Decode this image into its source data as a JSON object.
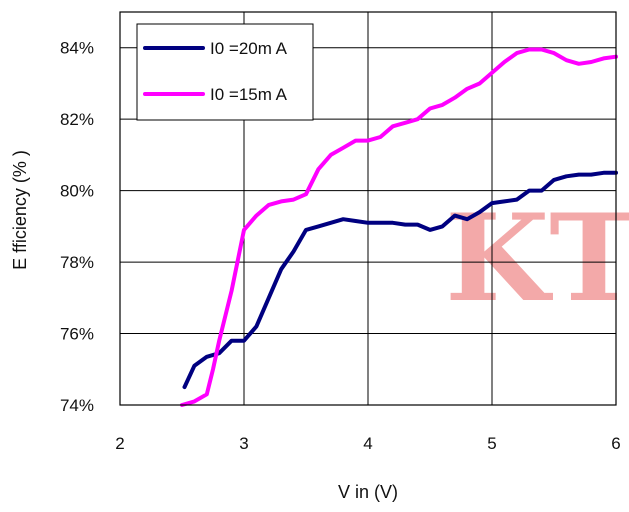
{
  "chart_data": {
    "type": "line",
    "xlabel": "V in (V)",
    "ylabel": "E fficiency (% )",
    "xlim": [
      2,
      6
    ],
    "ylim": [
      74,
      85
    ],
    "x_ticks": [
      "2",
      "3",
      "4",
      "5",
      "6"
    ],
    "y_ticks": [
      "74%",
      "76%",
      "78%",
      "80%",
      "82%",
      "84%"
    ],
    "grid": true,
    "legend_position": "top-left",
    "series": [
      {
        "name": "I0 =20m A",
        "color": "#000080",
        "x": [
          2.52,
          2.6,
          2.7,
          2.8,
          2.9,
          3.0,
          3.1,
          3.2,
          3.3,
          3.4,
          3.5,
          3.6,
          3.7,
          3.8,
          3.9,
          4.0,
          4.1,
          4.2,
          4.3,
          4.4,
          4.5,
          4.6,
          4.7,
          4.8,
          4.9,
          5.0,
          5.1,
          5.2,
          5.3,
          5.4,
          5.5,
          5.6,
          5.7,
          5.8,
          5.9,
          6.0
        ],
        "y": [
          74.5,
          75.1,
          75.35,
          75.45,
          75.8,
          75.8,
          76.2,
          77.0,
          77.8,
          78.3,
          78.9,
          79.0,
          79.1,
          79.2,
          79.15,
          79.1,
          79.1,
          79.1,
          79.05,
          79.05,
          78.9,
          79.0,
          79.3,
          79.2,
          79.4,
          79.65,
          79.7,
          79.75,
          80.0,
          80.0,
          80.3,
          80.4,
          80.45,
          80.45,
          80.5,
          80.5
        ]
      },
      {
        "name": "I0 =15m A",
        "color": "#ff00ff",
        "x": [
          2.5,
          2.6,
          2.7,
          2.75,
          2.8,
          2.9,
          3.0,
          3.1,
          3.2,
          3.3,
          3.4,
          3.5,
          3.6,
          3.7,
          3.8,
          3.9,
          4.0,
          4.1,
          4.2,
          4.3,
          4.4,
          4.5,
          4.6,
          4.7,
          4.8,
          4.9,
          5.0,
          5.1,
          5.2,
          5.3,
          5.4,
          5.5,
          5.6,
          5.7,
          5.8,
          5.9,
          6.0
        ],
        "y": [
          74.0,
          74.1,
          74.3,
          75.0,
          75.8,
          77.2,
          78.9,
          79.3,
          79.6,
          79.7,
          79.75,
          79.9,
          80.6,
          81.0,
          81.2,
          81.4,
          81.4,
          81.5,
          81.8,
          81.9,
          82.0,
          82.3,
          82.4,
          82.6,
          82.85,
          83.0,
          83.3,
          83.6,
          83.85,
          83.95,
          83.95,
          83.85,
          83.65,
          83.55,
          83.6,
          83.7,
          83.75
        ]
      }
    ]
  },
  "colors": {
    "watermark": "#f2a0a0"
  },
  "watermark_text": "KT"
}
